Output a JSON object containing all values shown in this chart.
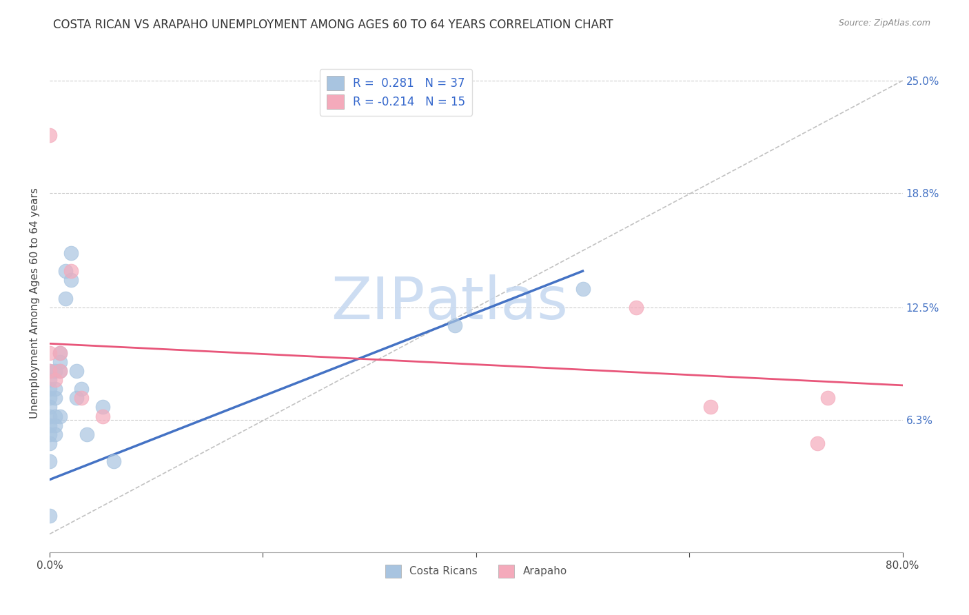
{
  "title": "COSTA RICAN VS ARAPAHO UNEMPLOYMENT AMONG AGES 60 TO 64 YEARS CORRELATION CHART",
  "source": "Source: ZipAtlas.com",
  "ylabel": "Unemployment Among Ages 60 to 64 years",
  "xlim": [
    0,
    0.8
  ],
  "ylim": [
    -0.01,
    0.265
  ],
  "right_ytick_labels": [
    "6.3%",
    "12.5%",
    "18.8%",
    "25.0%"
  ],
  "right_ytick_vals": [
    0.063,
    0.125,
    0.188,
    0.25
  ],
  "legend_blue_label": "R =  0.281   N = 37",
  "legend_pink_label": "R = -0.214   N = 15",
  "blue_color": "#A8C4E0",
  "pink_color": "#F4AABB",
  "blue_line_color": "#4472C4",
  "pink_line_color": "#E8567A",
  "blue_scatter_x": [
    0.0,
    0.0,
    0.0,
    0.0,
    0.0,
    0.0,
    0.0,
    0.0,
    0.0,
    0.0,
    0.0,
    0.005,
    0.005,
    0.005,
    0.005,
    0.005,
    0.005,
    0.01,
    0.01,
    0.01,
    0.01,
    0.015,
    0.015,
    0.02,
    0.02,
    0.025,
    0.025,
    0.03,
    0.035,
    0.05,
    0.06,
    0.38,
    0.5
  ],
  "blue_scatter_y": [
    0.04,
    0.05,
    0.055,
    0.06,
    0.065,
    0.07,
    0.075,
    0.08,
    0.085,
    0.09,
    0.01,
    0.055,
    0.06,
    0.065,
    0.075,
    0.08,
    0.09,
    0.09,
    0.095,
    0.1,
    0.065,
    0.13,
    0.145,
    0.14,
    0.155,
    0.075,
    0.09,
    0.08,
    0.055,
    0.07,
    0.04,
    0.115,
    0.135
  ],
  "pink_scatter_x": [
    0.0,
    0.0,
    0.0,
    0.005,
    0.01,
    0.01,
    0.02,
    0.03,
    0.05,
    0.55,
    0.62,
    0.72,
    0.73
  ],
  "pink_scatter_y": [
    0.22,
    0.1,
    0.09,
    0.085,
    0.09,
    0.1,
    0.145,
    0.075,
    0.065,
    0.125,
    0.07,
    0.05,
    0.075
  ],
  "blue_line_x": [
    0.0,
    0.5
  ],
  "blue_line_y": [
    0.03,
    0.145
  ],
  "pink_line_x": [
    0.0,
    0.8
  ],
  "pink_line_y": [
    0.105,
    0.082
  ],
  "diag_line_x": [
    0.0,
    0.8
  ],
  "diag_line_y": [
    0.0,
    0.25
  ]
}
